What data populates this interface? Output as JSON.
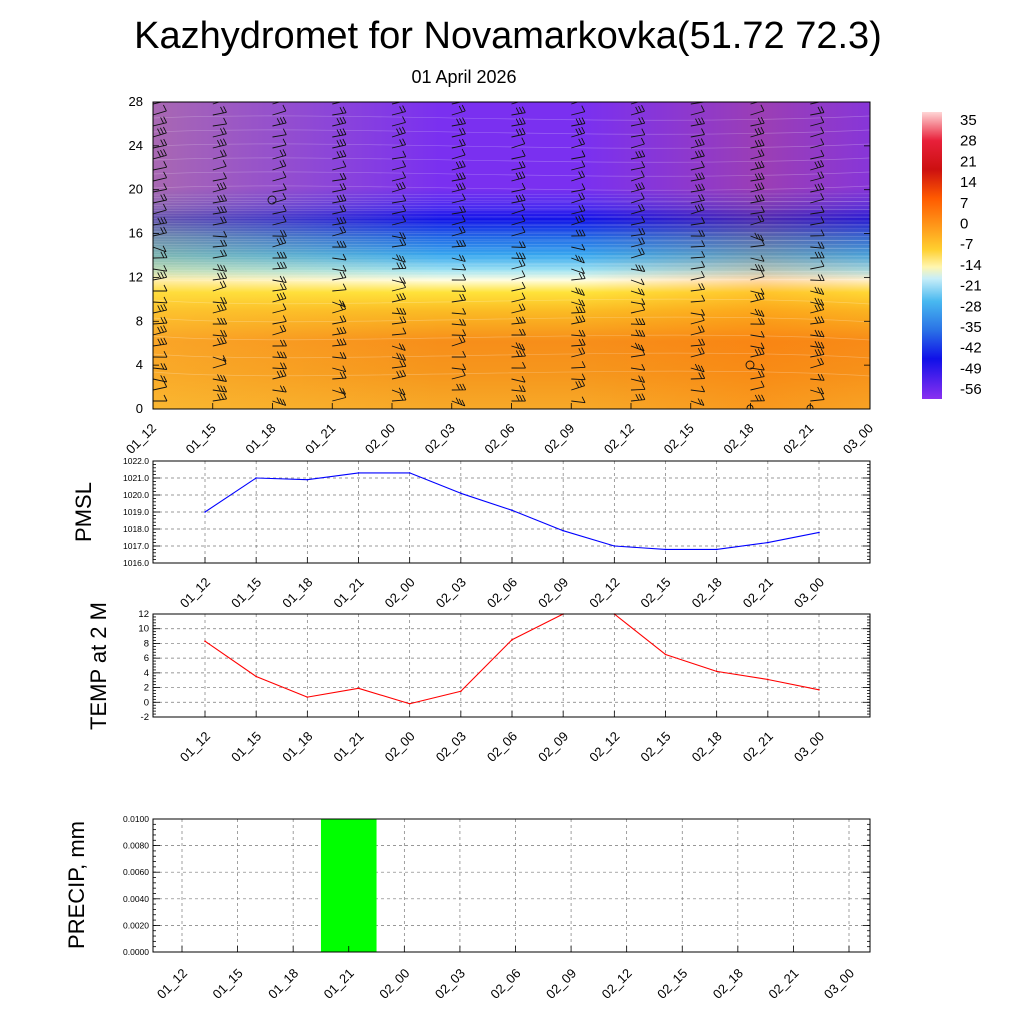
{
  "header": {
    "title": "Kazhydromet for Novamarkovka(51.72 72.3)",
    "date": "01 April 2026"
  },
  "colors": {
    "pmsl_line": "#0000ff",
    "temp_line": "#ff0000",
    "precip_bar": "#00ff00"
  },
  "chart_data": [
    {
      "type": "heatmap",
      "name": "cross-section",
      "x": [
        "01_12",
        "01_15",
        "01_18",
        "01_21",
        "02_00",
        "02_03",
        "02_06",
        "02_09",
        "02_12",
        "02_15",
        "02_18",
        "02_21",
        "03_00"
      ],
      "y_ticks": [
        0,
        4,
        8,
        12,
        16,
        20,
        24,
        28
      ],
      "ylim": [
        0,
        28
      ],
      "colorbar_labels": [
        "35",
        "28",
        "21",
        "14",
        "7",
        "0",
        "-7",
        "-14",
        "-21",
        "-28",
        "-35",
        "-42",
        "-49",
        "-56"
      ]
    },
    {
      "type": "line",
      "name": "pmsl",
      "ylabel": "PMSL",
      "x": [
        "01_12",
        "01_15",
        "01_18",
        "01_21",
        "02_00",
        "02_03",
        "02_06",
        "02_09",
        "02_12",
        "02_15",
        "02_18",
        "02_21",
        "03_00"
      ],
      "values": [
        1019.0,
        1021.0,
        1020.9,
        1021.3,
        1021.3,
        1020.1,
        1019.1,
        1017.9,
        1017.0,
        1016.8,
        1016.8,
        1017.2,
        1017.8
      ],
      "ylim": [
        1016.0,
        1022.0
      ],
      "y_ticks": [
        "1016.0",
        "1017.0",
        "1018.0",
        "1019.0",
        "1020.0",
        "1021.0",
        "1022.0"
      ]
    },
    {
      "type": "line",
      "name": "temp",
      "ylabel": "TEMP at 2 M",
      "x": [
        "01_12",
        "01_15",
        "01_18",
        "01_21",
        "02_00",
        "02_03",
        "02_06",
        "02_09",
        "02_12",
        "02_15",
        "02_18",
        "02_21",
        "03_00"
      ],
      "values": [
        8.3,
        3.5,
        0.7,
        1.9,
        -0.2,
        1.5,
        8.5,
        12.0,
        12.0,
        6.5,
        4.2,
        3.1,
        1.7
      ],
      "ylim": [
        -2,
        12
      ],
      "y_ticks": [
        "-2",
        "0",
        "2",
        "4",
        "6",
        "8",
        "10",
        "12"
      ]
    },
    {
      "type": "bar",
      "name": "precip",
      "ylabel": "PRECIP, mm",
      "x": [
        "01_12",
        "01_15",
        "01_18",
        "01_21",
        "02_00",
        "02_03",
        "02_06",
        "02_09",
        "02_12",
        "02_15",
        "02_18",
        "02_21",
        "03_00"
      ],
      "bars": [
        {
          "from": 2.5,
          "to": 3.5,
          "value": 0.01
        }
      ],
      "ylim": [
        0,
        0.01
      ],
      "y_ticks": [
        "0.0000",
        "0.0020",
        "0.0040",
        "0.0060",
        "0.0080",
        "0.0100"
      ]
    }
  ]
}
